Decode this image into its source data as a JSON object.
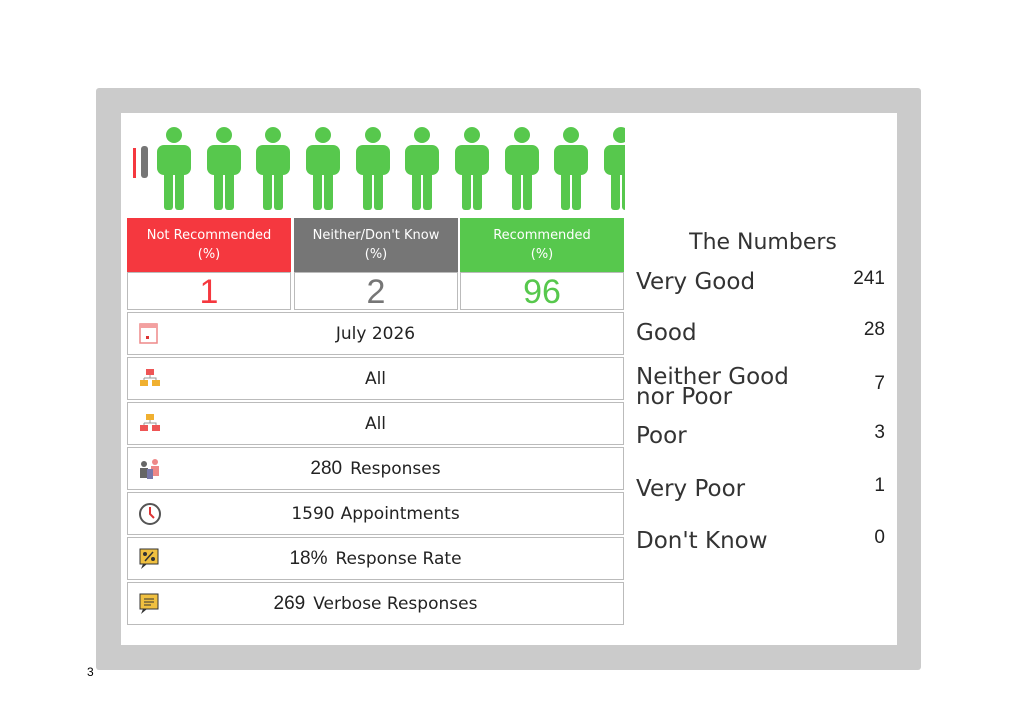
{
  "summary": [
    {
      "label": "Not Recommended",
      "unit": "(%)",
      "value": 1,
      "color": "#f5383f"
    },
    {
      "label": "Neither/Don't Know",
      "unit": "(%)",
      "value": 2,
      "color": "#767676"
    },
    {
      "label": "Recommended",
      "unit": "(%)",
      "value": 96,
      "color": "#57c84d"
    }
  ],
  "filters": [
    "July 2026",
    "All",
    "All"
  ],
  "stats": [
    {
      "value": "280",
      "label": "Responses"
    },
    {
      "value": "1590",
      "label": "Appointments"
    },
    {
      "value": "18%",
      "label": "Response Rate"
    },
    {
      "value": "269",
      "label": "Verbose Responses"
    }
  ],
  "numbers": {
    "title": "The Numbers",
    "rows": [
      {
        "label": "Very Good",
        "count": 241
      },
      {
        "label": "Good",
        "count": 28
      },
      {
        "label": "Neither Good nor Poor",
        "count": 7
      },
      {
        "label": "Poor",
        "count": 3
      },
      {
        "label": "Very Poor",
        "count": 1
      },
      {
        "label": "Don't Know",
        "count": 0
      }
    ]
  },
  "page_number": "3"
}
